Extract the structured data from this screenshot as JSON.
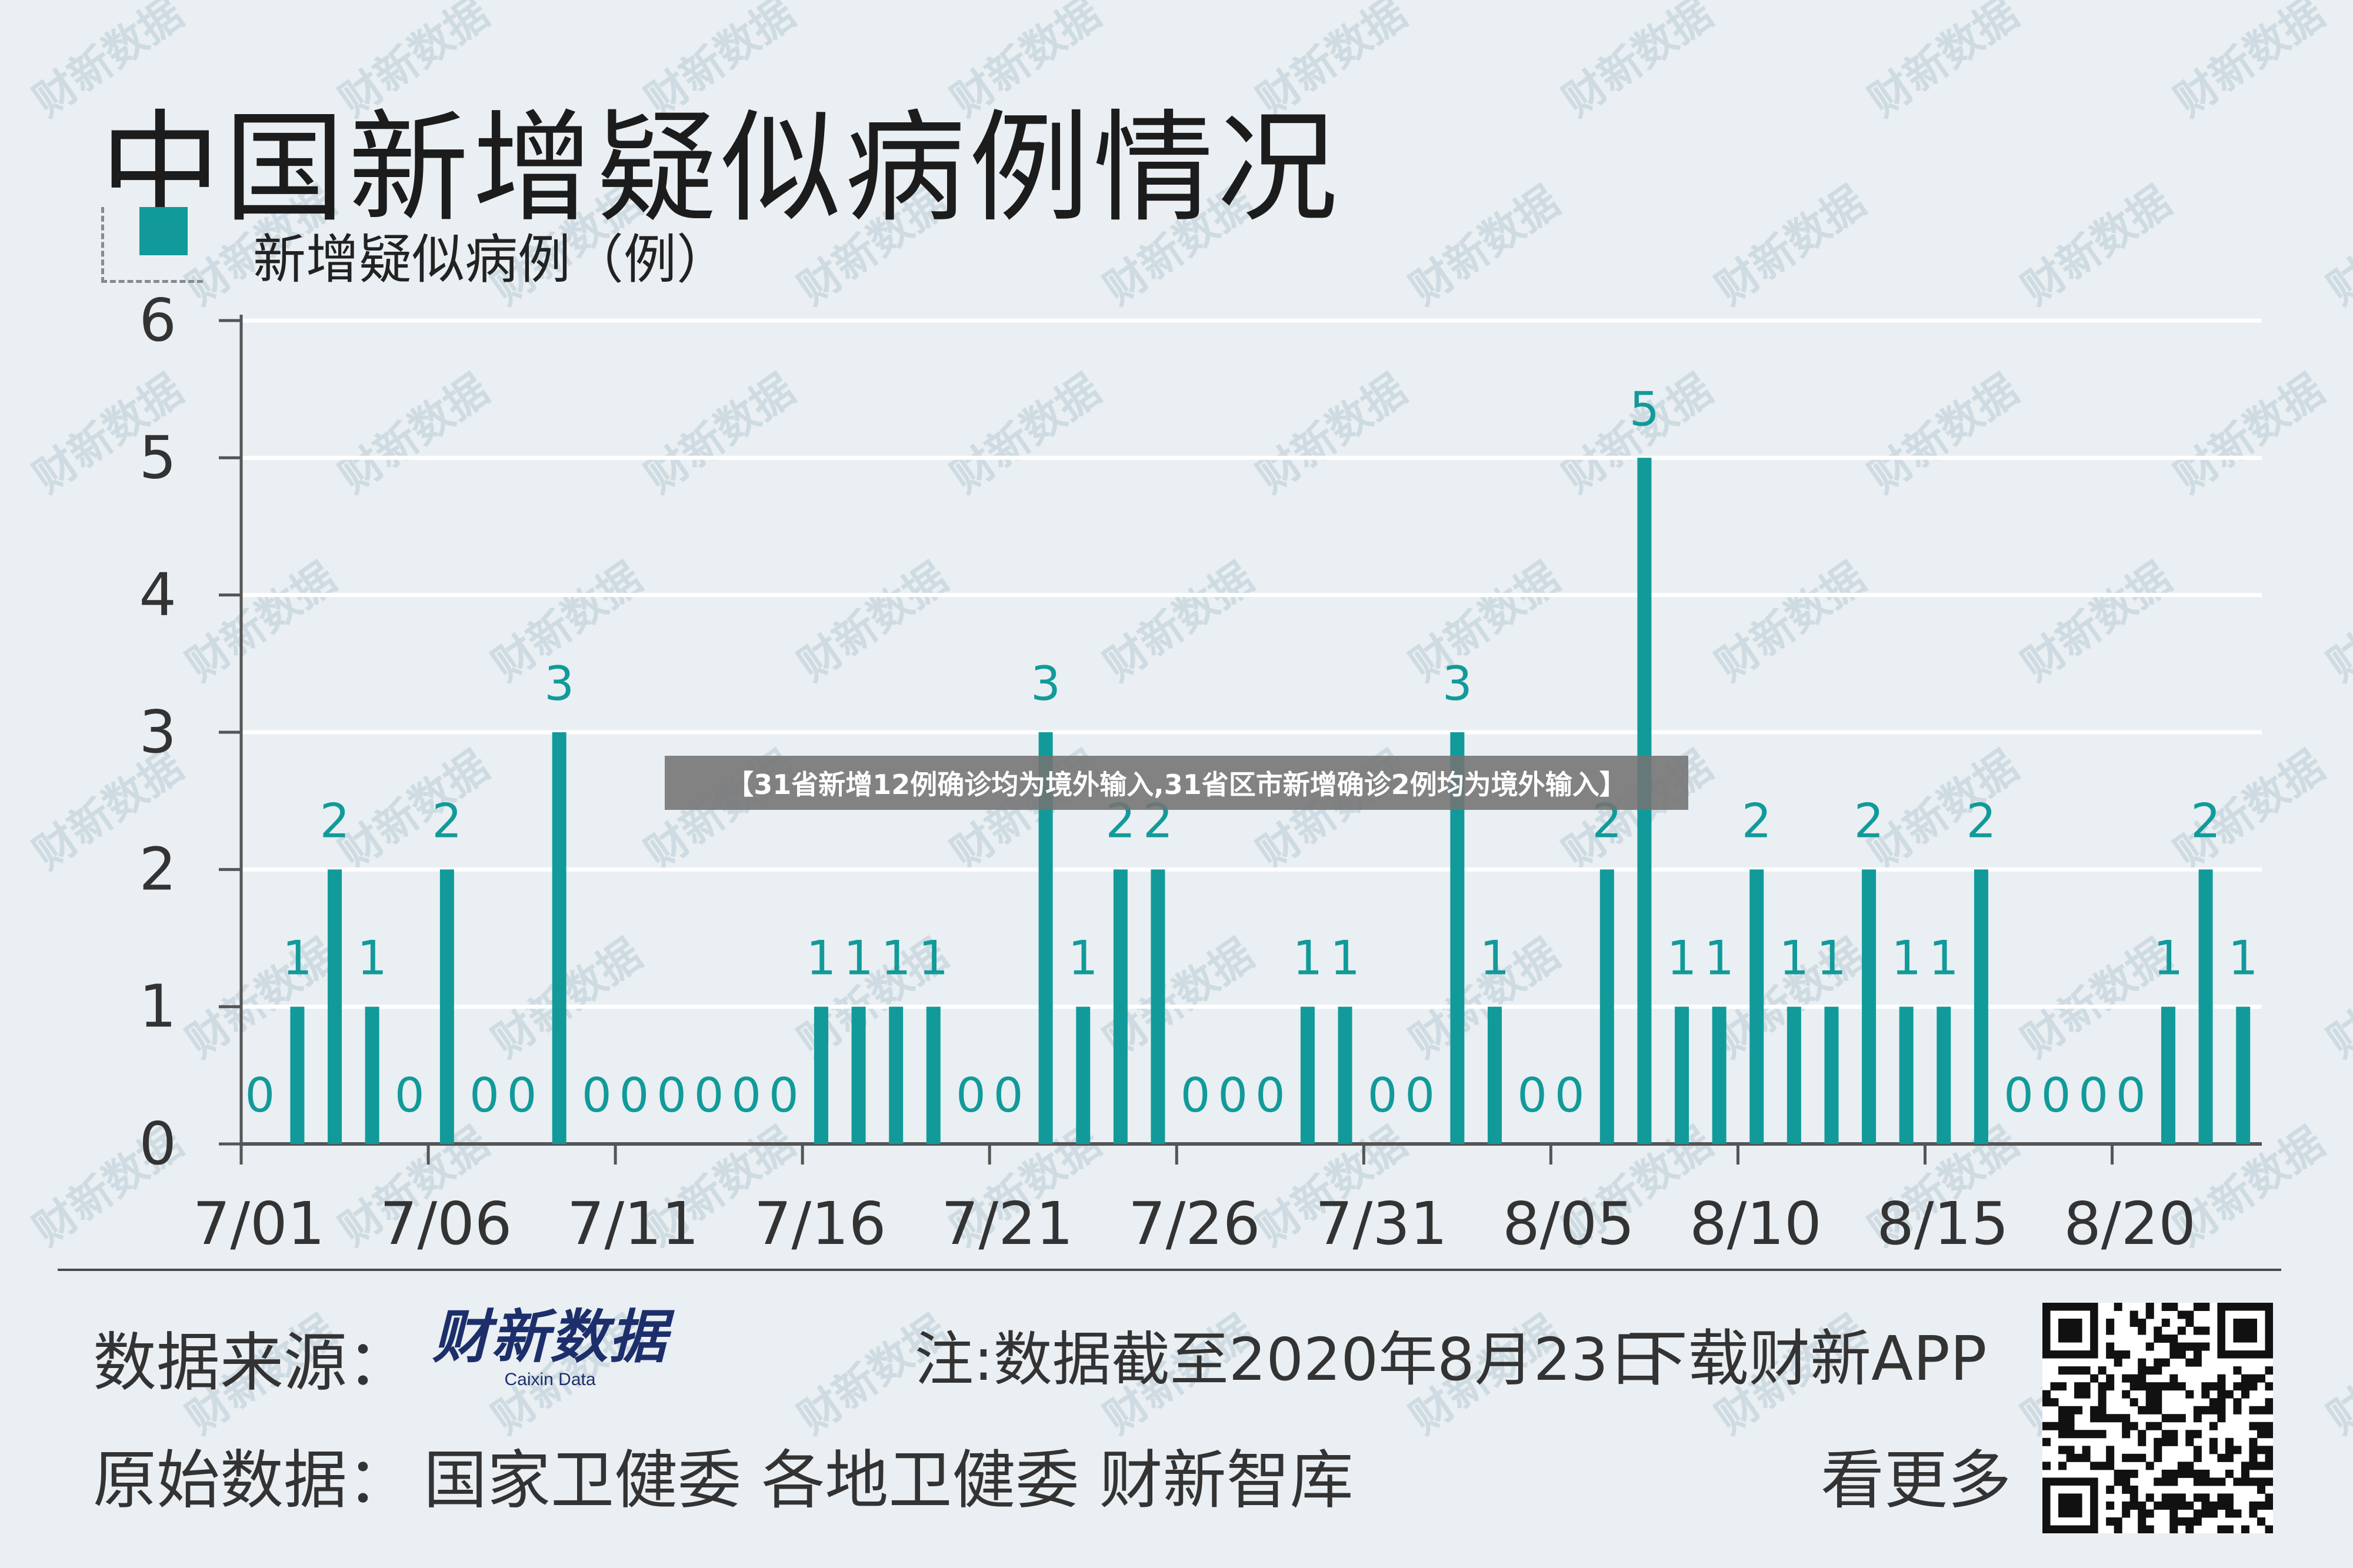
{
  "title": "中国新增疑似病例情况",
  "legend": {
    "label": "新增疑似病例（例）",
    "color": "#129a9a"
  },
  "banner": "【31省新增12例确诊均为境外输入,31省区市新增确诊2例均为境外输入】",
  "footer": {
    "source_label": "数据来源：",
    "brand_cn": "财新数据",
    "brand_en": "Caixin Data",
    "note": "注:数据截至2020年8月23日",
    "download": "下载财新APP",
    "original_label": "原始数据：",
    "original_sources": "国家卫健委  各地卫健委  财新智库",
    "more": "看更多"
  },
  "watermark": "财新数据",
  "chart_data": {
    "type": "bar",
    "title": "中国新增疑似病例情况",
    "xlabel": "",
    "ylabel": "",
    "ylim": [
      0,
      6
    ],
    "yticks": [
      0,
      1,
      2,
      3,
      4,
      5,
      6
    ],
    "grid": true,
    "legend_position": "top-left",
    "xticks": [
      "7/01",
      "7/06",
      "7/11",
      "7/16",
      "7/21",
      "7/26",
      "7/31",
      "8/05",
      "8/10",
      "8/15",
      "8/20"
    ],
    "categories": [
      "7/01",
      "7/02",
      "7/03",
      "7/04",
      "7/05",
      "7/06",
      "7/07",
      "7/08",
      "7/09",
      "7/10",
      "7/11",
      "7/12",
      "7/13",
      "7/14",
      "7/15",
      "7/16",
      "7/17",
      "7/18",
      "7/19",
      "7/20",
      "7/21",
      "7/22",
      "7/23",
      "7/24",
      "7/25",
      "7/26",
      "7/27",
      "7/28",
      "7/29",
      "7/30",
      "7/31",
      "8/01",
      "8/02",
      "8/03",
      "8/04",
      "8/05",
      "8/06",
      "8/07",
      "8/08",
      "8/09",
      "8/10",
      "8/11",
      "8/12",
      "8/13",
      "8/14",
      "8/15",
      "8/16",
      "8/17",
      "8/18",
      "8/19",
      "8/20",
      "8/21",
      "8/22",
      "8/23"
    ],
    "series": [
      {
        "name": "新增疑似病例（例）",
        "values": [
          0,
          1,
          2,
          1,
          0,
          2,
          0,
          0,
          3,
          0,
          0,
          0,
          0,
          0,
          0,
          1,
          1,
          1,
          1,
          0,
          0,
          3,
          1,
          2,
          2,
          0,
          0,
          0,
          1,
          1,
          0,
          0,
          3,
          1,
          0,
          0,
          2,
          5,
          1,
          1,
          2,
          1,
          1,
          2,
          1,
          1,
          2,
          0,
          0,
          0,
          0,
          1,
          2,
          1
        ]
      }
    ]
  }
}
